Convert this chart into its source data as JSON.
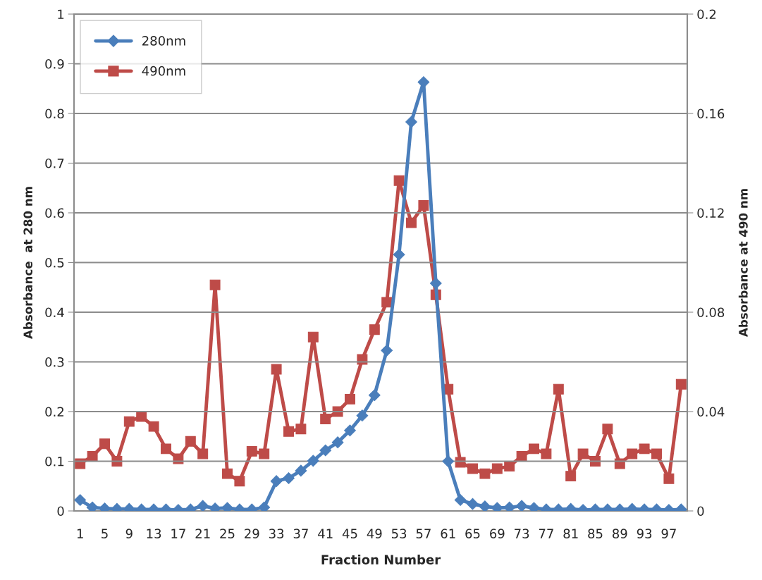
{
  "chart_data": {
    "type": "line",
    "xlabel": "Fraction Number",
    "ylabel": "Absorbance  at 280 nm",
    "y2label": "Absorbance at 490 nm",
    "categories": [
      "1",
      null,
      "5",
      null,
      "9",
      null,
      "13",
      null,
      "17",
      null,
      "21",
      null,
      "25",
      null,
      "29",
      null,
      "33",
      null,
      "37",
      null,
      "41",
      null,
      "45",
      null,
      "49",
      null,
      "53",
      null,
      "57",
      null,
      "61",
      null,
      "65",
      null,
      "69",
      null,
      "73",
      null,
      "77",
      null,
      "81",
      null,
      "85",
      null,
      "89",
      null,
      "93",
      null,
      "97",
      null
    ],
    "series": [
      {
        "name": "280nm",
        "color": "#4a7ebb",
        "marker": "diamond",
        "values": [
          0.022,
          0.007,
          0.005,
          0.004,
          0.004,
          0.003,
          0.003,
          0.003,
          0.002,
          0.003,
          0.01,
          0.005,
          0.006,
          0.003,
          0.003,
          0.007,
          0.06,
          0.066,
          0.081,
          0.101,
          0.122,
          0.138,
          0.162,
          0.192,
          0.233,
          0.323,
          0.516,
          0.783,
          0.863,
          0.458,
          0.1,
          0.022,
          0.014,
          0.009,
          0.006,
          0.007,
          0.01,
          0.006,
          0.003,
          0.003,
          0.004,
          0.002,
          0.003,
          0.003,
          0.003,
          0.004,
          0.003,
          0.003,
          0.002,
          0.003
        ]
      },
      {
        "name": "490nm",
        "color": "#be4b48",
        "marker": "square",
        "axis": "y2",
        "values": [
          0.019,
          0.022,
          0.027,
          0.02,
          0.036,
          0.038,
          0.034,
          0.025,
          0.021,
          0.028,
          0.023,
          0.091,
          0.015,
          0.012,
          0.024,
          0.023,
          0.057,
          0.032,
          0.033,
          0.07,
          0.037,
          0.04,
          0.045,
          0.061,
          0.073,
          0.084,
          0.133,
          0.116,
          0.123,
          0.087,
          0.049,
          0.0196,
          0.017,
          0.015,
          0.017,
          0.018,
          0.022,
          0.025,
          0.023,
          0.049,
          0.014,
          0.023,
          0.02,
          0.033,
          0.019,
          0.023,
          0.025,
          0.023,
          0.013,
          0.051
        ]
      }
    ],
    "ylim": [
      0,
      1
    ],
    "yticks": [
      0,
      0.1,
      0.2,
      0.3,
      0.4,
      0.5,
      0.6,
      0.7,
      0.8,
      0.9,
      1
    ],
    "y2lim": [
      0,
      0.2
    ],
    "y2ticks": [
      0,
      0.04,
      0.08,
      0.12,
      0.16,
      0.2
    ],
    "grid": "y",
    "legend": "top left",
    "line_style": "solid"
  }
}
